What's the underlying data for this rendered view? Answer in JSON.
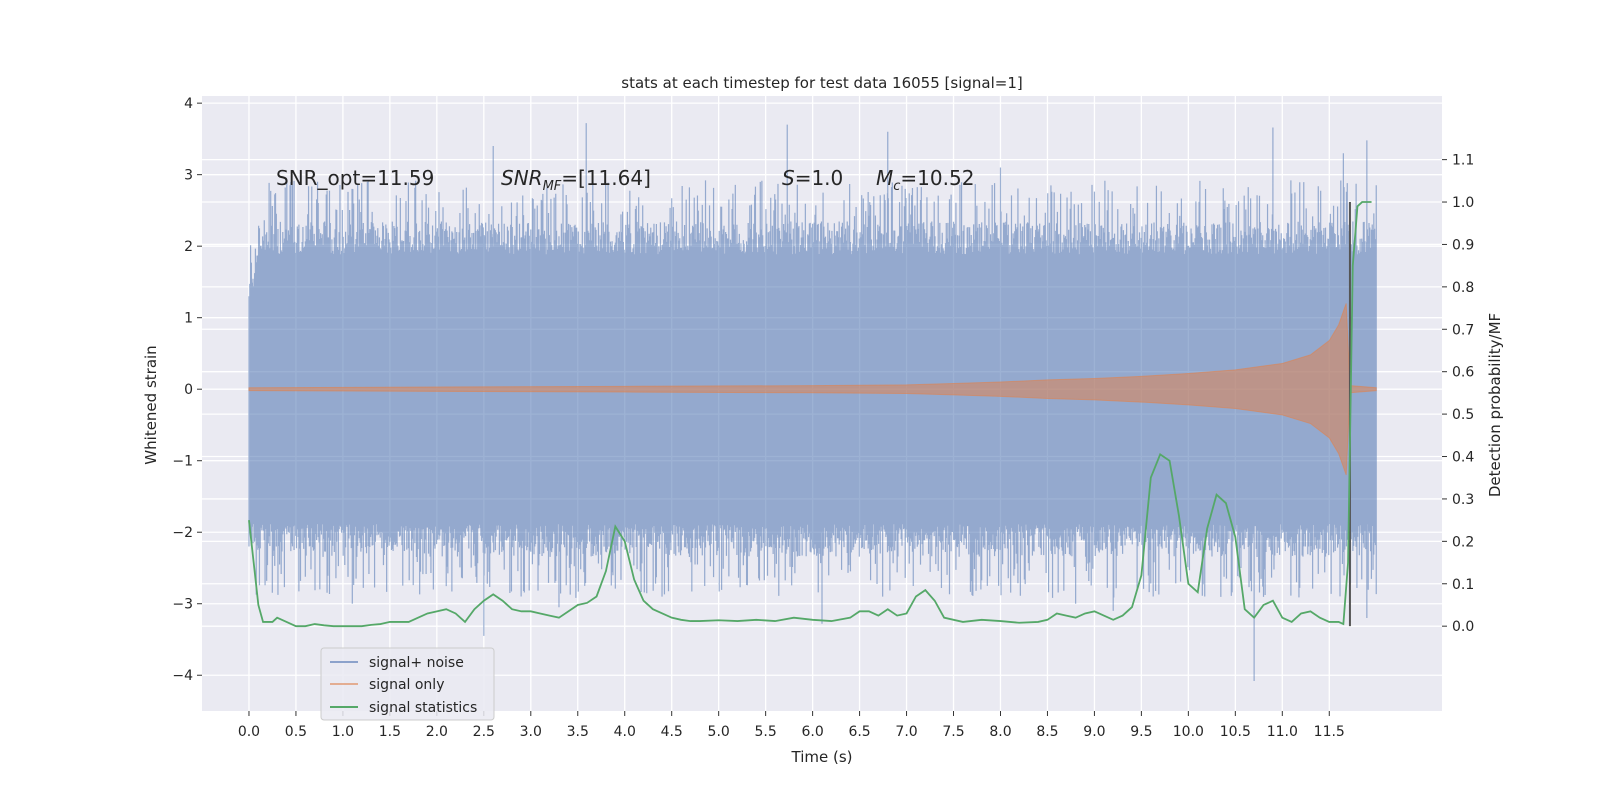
{
  "chart_data": {
    "type": "line",
    "title": "stats at each timestep for test data 16055 [signal=1]",
    "xlabel": "Time (s)",
    "ylabel": "Whitened strain",
    "ylabel_right": "Detection probability/MF",
    "xlim": [
      -0.5,
      12.7
    ],
    "ylim": [
      -4.5,
      4.1
    ],
    "ylim_right": [
      -0.2,
      1.25
    ],
    "x_ticks": [
      "0.0",
      "0.5",
      "1.0",
      "1.5",
      "2.0",
      "2.5",
      "3.0",
      "3.5",
      "4.0",
      "4.5",
      "5.0",
      "5.5",
      "6.0",
      "6.5",
      "7.0",
      "7.5",
      "8.0",
      "8.5",
      "9.0",
      "9.5",
      "10.0",
      "10.5",
      "11.0",
      "11.5"
    ],
    "y_ticks": [
      "4",
      "3",
      "2",
      "1",
      "0",
      "−1",
      "−2",
      "−3",
      "−4"
    ],
    "y_right_ticks": [
      "1.1",
      "1.0",
      "0.9",
      "0.8",
      "0.7",
      "0.6",
      "0.5",
      "0.4",
      "0.3",
      "0.2",
      "0.1",
      "0.0"
    ],
    "grid": true,
    "legend_position": "lower-left",
    "colors": {
      "noise": "#4c72b0",
      "signal": "#dd8452",
      "stats": "#55a868",
      "marker": "#555555",
      "background": "#eaeaf2"
    },
    "series": [
      {
        "name": "signal+ noise",
        "axis": "left",
        "x_range": [
          0.0,
          12.0
        ],
        "typical_max": [
          [
            0.0,
            1.55
          ],
          [
            0.2,
            2.3
          ],
          [
            12.0,
            2.3
          ]
        ],
        "typical_min": [
          [
            0.0,
            -2.3
          ],
          [
            12.0,
            -2.3
          ]
        ],
        "peaks_max": [
          [
            0.73,
            2.9
          ],
          [
            2.6,
            3.4
          ],
          [
            3.59,
            3.72
          ],
          [
            5.73,
            3.7
          ],
          [
            6.8,
            3.6
          ],
          [
            8.0,
            3.1
          ],
          [
            10.9,
            3.66
          ],
          [
            11.65,
            3.3
          ],
          [
            11.9,
            3.48
          ]
        ],
        "peaks_min": [
          [
            1.1,
            -3.0
          ],
          [
            2.5,
            -3.45
          ],
          [
            3.3,
            -3.05
          ],
          [
            6.1,
            -3.28
          ],
          [
            8.8,
            -3.0
          ],
          [
            9.2,
            -3.1
          ],
          [
            10.7,
            -4.08
          ],
          [
            11.9,
            -3.2
          ]
        ]
      },
      {
        "name": "signal only",
        "axis": "left",
        "x": [
          0.0,
          2.0,
          4.0,
          6.0,
          7.0,
          7.5,
          8.0,
          8.5,
          9.0,
          9.5,
          10.0,
          10.5,
          11.0,
          11.3,
          11.5,
          11.6,
          11.68,
          11.72,
          12.0
        ],
        "envelope": [
          0.02,
          0.03,
          0.04,
          0.05,
          0.06,
          0.08,
          0.1,
          0.13,
          0.15,
          0.18,
          0.22,
          0.27,
          0.36,
          0.48,
          0.68,
          0.9,
          1.2,
          0.05,
          0.02
        ]
      },
      {
        "name": "signal statistics",
        "axis": "right",
        "x": [
          0.0,
          0.05,
          0.1,
          0.15,
          0.2,
          0.25,
          0.3,
          0.4,
          0.5,
          0.6,
          0.7,
          0.8,
          0.9,
          1.0,
          1.1,
          1.2,
          1.3,
          1.4,
          1.5,
          1.6,
          1.7,
          1.8,
          1.9,
          2.0,
          2.1,
          2.2,
          2.3,
          2.4,
          2.5,
          2.6,
          2.7,
          2.8,
          2.9,
          3.0,
          3.1,
          3.2,
          3.3,
          3.4,
          3.5,
          3.6,
          3.7,
          3.8,
          3.9,
          4.0,
          4.1,
          4.2,
          4.3,
          4.4,
          4.5,
          4.6,
          4.7,
          4.8,
          5.0,
          5.2,
          5.4,
          5.6,
          5.8,
          6.0,
          6.2,
          6.4,
          6.5,
          6.6,
          6.7,
          6.8,
          6.9,
          7.0,
          7.1,
          7.2,
          7.3,
          7.4,
          7.6,
          7.8,
          8.0,
          8.2,
          8.4,
          8.5,
          8.6,
          8.7,
          8.8,
          8.9,
          9.0,
          9.1,
          9.2,
          9.3,
          9.4,
          9.5,
          9.6,
          9.7,
          9.8,
          9.9,
          10.0,
          10.1,
          10.2,
          10.3,
          10.4,
          10.5,
          10.6,
          10.7,
          10.8,
          10.9,
          11.0,
          11.1,
          11.2,
          11.3,
          11.4,
          11.5,
          11.55,
          11.6,
          11.65,
          11.7,
          11.75,
          11.8,
          11.85,
          11.9,
          11.95
        ],
        "values": [
          0.25,
          0.15,
          0.05,
          0.01,
          0.01,
          0.01,
          0.02,
          0.01,
          0.0,
          0.0,
          0.005,
          0.002,
          0.0,
          0.0,
          0.0,
          0.0,
          0.003,
          0.005,
          0.01,
          0.01,
          0.01,
          0.02,
          0.03,
          0.035,
          0.04,
          0.03,
          0.01,
          0.04,
          0.06,
          0.075,
          0.06,
          0.04,
          0.035,
          0.035,
          0.03,
          0.025,
          0.02,
          0.035,
          0.05,
          0.055,
          0.07,
          0.13,
          0.235,
          0.2,
          0.11,
          0.06,
          0.04,
          0.03,
          0.02,
          0.015,
          0.012,
          0.012,
          0.014,
          0.012,
          0.015,
          0.012,
          0.02,
          0.015,
          0.012,
          0.02,
          0.035,
          0.035,
          0.025,
          0.04,
          0.025,
          0.03,
          0.07,
          0.085,
          0.06,
          0.02,
          0.01,
          0.015,
          0.012,
          0.008,
          0.01,
          0.015,
          0.03,
          0.025,
          0.02,
          0.03,
          0.035,
          0.025,
          0.015,
          0.025,
          0.045,
          0.12,
          0.35,
          0.405,
          0.39,
          0.26,
          0.1,
          0.08,
          0.23,
          0.31,
          0.29,
          0.21,
          0.04,
          0.02,
          0.05,
          0.06,
          0.02,
          0.01,
          0.03,
          0.035,
          0.02,
          0.01,
          0.01,
          0.01,
          0.005,
          0.15,
          0.85,
          0.99,
          1.0,
          1.0,
          1.0
        ],
        "marker_x": 11.72
      }
    ],
    "annotations": [
      "SNR_opt=11.59",
      "SNR",
      "MF",
      "=[11.64]",
      "S",
      "=1.0",
      "M",
      "c",
      "=10.52"
    ]
  }
}
